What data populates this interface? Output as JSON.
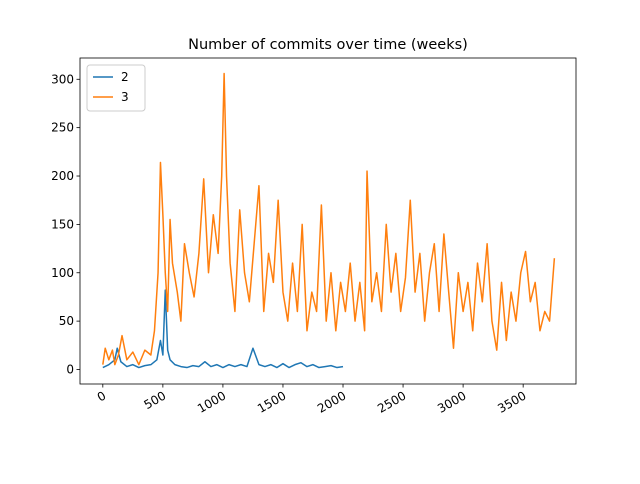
{
  "chart_data": {
    "type": "line",
    "title": "Number of commits over time (weeks)",
    "xlim": [
      -190,
      3940
    ],
    "ylim": [
      -15,
      322
    ],
    "xticks": [
      0,
      500,
      1000,
      1500,
      2000,
      2500,
      3000,
      3500
    ],
    "yticks": [
      0,
      50,
      100,
      150,
      200,
      250,
      300
    ],
    "legend": "upper left",
    "series": [
      {
        "name": "2",
        "color": "#1f77b4",
        "x": [
          0,
          50,
          100,
          120,
          150,
          200,
          250,
          300,
          350,
          400,
          450,
          480,
          500,
          520,
          540,
          560,
          600,
          650,
          700,
          750,
          800,
          850,
          900,
          950,
          1000,
          1050,
          1100,
          1150,
          1200,
          1250,
          1300,
          1350,
          1400,
          1450,
          1500,
          1550,
          1600,
          1650,
          1700,
          1750,
          1800,
          1850,
          1900,
          1950,
          2000
        ],
        "values": [
          2,
          5,
          10,
          22,
          8,
          3,
          5,
          2,
          4,
          5,
          10,
          30,
          15,
          82,
          20,
          10,
          5,
          3,
          2,
          4,
          3,
          8,
          3,
          5,
          2,
          5,
          3,
          5,
          3,
          22,
          5,
          3,
          5,
          2,
          6,
          2,
          5,
          7,
          3,
          5,
          2,
          3,
          4,
          2,
          3
        ]
      },
      {
        "name": "3",
        "color": "#ff7f0e",
        "x": [
          0,
          20,
          50,
          80,
          100,
          130,
          160,
          200,
          250,
          300,
          350,
          400,
          430,
          460,
          480,
          500,
          520,
          540,
          560,
          580,
          620,
          650,
          680,
          720,
          760,
          800,
          840,
          880,
          920,
          960,
          990,
          1010,
          1030,
          1060,
          1100,
          1140,
          1180,
          1220,
          1260,
          1300,
          1340,
          1380,
          1420,
          1460,
          1500,
          1540,
          1580,
          1620,
          1660,
          1700,
          1740,
          1780,
          1820,
          1860,
          1900,
          1940,
          1980,
          2020,
          2060,
          2100,
          2140,
          2180,
          2200,
          2240,
          2280,
          2320,
          2360,
          2400,
          2440,
          2480,
          2520,
          2560,
          2600,
          2640,
          2680,
          2720,
          2760,
          2800,
          2840,
          2880,
          2920,
          2960,
          3000,
          3040,
          3080,
          3120,
          3160,
          3200,
          3240,
          3280,
          3320,
          3360,
          3400,
          3440,
          3480,
          3520,
          3560,
          3600,
          3640,
          3680,
          3720,
          3760
        ],
        "values": [
          5,
          22,
          10,
          20,
          5,
          15,
          35,
          10,
          18,
          5,
          20,
          15,
          40,
          100,
          214,
          160,
          100,
          60,
          155,
          110,
          80,
          50,
          130,
          100,
          75,
          120,
          197,
          100,
          160,
          120,
          200,
          306,
          200,
          110,
          60,
          165,
          100,
          70,
          130,
          190,
          60,
          120,
          90,
          175,
          80,
          50,
          110,
          60,
          150,
          40,
          80,
          60,
          170,
          50,
          100,
          40,
          90,
          60,
          110,
          50,
          90,
          40,
          205,
          70,
          100,
          60,
          150,
          80,
          120,
          60,
          95,
          175,
          80,
          120,
          50,
          100,
          130,
          60,
          140,
          80,
          22,
          100,
          60,
          90,
          40,
          110,
          70,
          130,
          50,
          20,
          90,
          30,
          80,
          50,
          100,
          122,
          70,
          90,
          40,
          60,
          50,
          115
        ]
      }
    ]
  }
}
